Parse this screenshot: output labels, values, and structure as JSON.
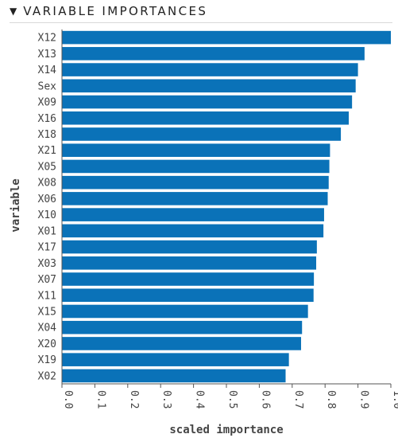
{
  "panel": {
    "caret": "▼",
    "title": "VARIABLE IMPORTANCES"
  },
  "chart_data": {
    "type": "bar",
    "orientation": "horizontal",
    "title": "",
    "xlabel": "scaled importance",
    "ylabel": "variable",
    "xlim": [
      0,
      1
    ],
    "x_ticks": [
      "0.0",
      "0.1",
      "0.2",
      "0.3",
      "0.4",
      "0.5",
      "0.6",
      "0.7",
      "0.8",
      "0.9",
      "1.0"
    ],
    "grid": false,
    "bar_color": "#0a72b8",
    "categories": [
      "X12",
      "X13",
      "X14",
      "Sex",
      "X09",
      "X16",
      "X18",
      "X21",
      "X05",
      "X08",
      "X06",
      "X10",
      "X01",
      "X17",
      "X03",
      "X07",
      "X11",
      "X15",
      "X04",
      "X20",
      "X19",
      "X02"
    ],
    "values": [
      1.0,
      0.92,
      0.9,
      0.893,
      0.882,
      0.872,
      0.848,
      0.815,
      0.813,
      0.811,
      0.808,
      0.797,
      0.795,
      0.775,
      0.773,
      0.766,
      0.765,
      0.748,
      0.73,
      0.727,
      0.69,
      0.68
    ]
  }
}
